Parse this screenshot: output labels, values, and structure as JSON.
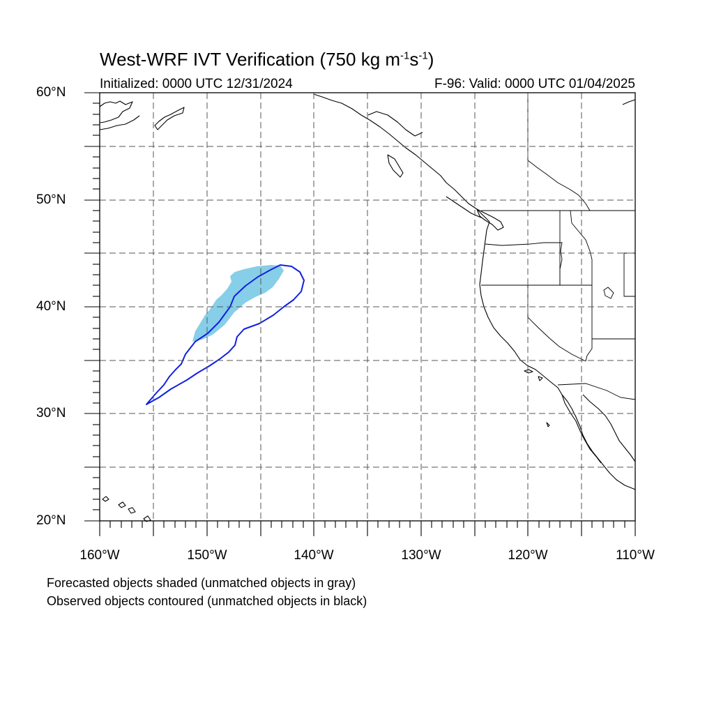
{
  "title": {
    "main": "West-WRF IVT Verification (750 kg m",
    "sup1": "-1",
    "mid": "s",
    "sup2": "-1",
    "end": ")"
  },
  "initialized": "Initialized: 0000 UTC 12/31/2024",
  "valid": "F-96: Valid: 0000 UTC 01/04/2025",
  "lat_labels": [
    "60°N",
    "50°N",
    "40°N",
    "30°N",
    "20°N"
  ],
  "lon_labels": [
    "160°W",
    "150°W",
    "140°W",
    "130°W",
    "120°W",
    "110°W"
  ],
  "notes": [
    "Forecasted objects shaded (unmatched objects in gray)",
    "Observed objects contoured (unmatched objects in black)"
  ],
  "colors": {
    "forecast_fill": "#87CEE8",
    "observed_contour": "#1020E0",
    "coastline": "#000000",
    "grid": "#555555"
  },
  "map_extent": {
    "lon_min": -160,
    "lon_max": -110,
    "lat_min": 20,
    "lat_max": 60
  }
}
